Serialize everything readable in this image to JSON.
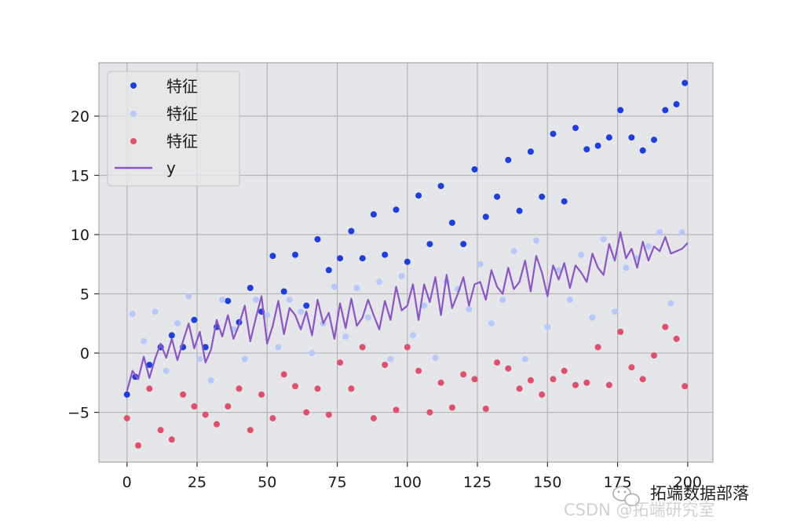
{
  "colors": {
    "feature_1": "#1f3ee0",
    "feature_2": "#b7c9fb",
    "feature_3": "#e0506a",
    "y_line": "#8a55c8",
    "plot_bg": "#e5e6e9",
    "grid": "#b5b5b8",
    "spine": "#a8a8a8"
  },
  "watermark": {
    "account": "拓端数据部落",
    "csdn": "CSDN @拓端研究室",
    "icon": "wechat-icon"
  },
  "chart_data": {
    "type": "scatter",
    "title": "",
    "xlabel": "",
    "ylabel": "",
    "xlim": [
      -10,
      209
    ],
    "ylim": [
      -9.2,
      24.5
    ],
    "xticks": [
      0,
      25,
      50,
      75,
      100,
      125,
      150,
      175,
      200
    ],
    "yticks": [
      -5,
      0,
      5,
      10,
      15,
      20
    ],
    "ytick_labels": [
      "−5",
      "0",
      "5",
      "10",
      "15",
      "20"
    ],
    "grid": true,
    "legend_position": "top-left",
    "series": [
      {
        "name": "特征",
        "kind": "scatter",
        "color_key": "feature_1",
        "x": [
          0,
          3,
          8,
          12,
          16,
          20,
          24,
          28,
          32,
          36,
          40,
          44,
          48,
          52,
          56,
          60,
          64,
          68,
          72,
          76,
          80,
          84,
          88,
          92,
          96,
          100,
          104,
          108,
          112,
          116,
          120,
          124,
          128,
          132,
          136,
          140,
          144,
          148,
          152,
          156,
          160,
          164,
          168,
          172,
          176,
          180,
          184,
          188,
          192,
          196,
          199
        ],
        "y": [
          -3.5,
          -2,
          -1,
          0.5,
          1.5,
          0.5,
          2.8,
          0.5,
          2.2,
          4.4,
          2.6,
          5.5,
          3.5,
          8.2,
          5.2,
          8.3,
          4,
          9.6,
          7,
          8,
          10.3,
          8,
          11.7,
          8.3,
          12.1,
          7.7,
          13.3,
          9.2,
          14.1,
          11,
          9.2,
          15.5,
          11.5,
          13.2,
          16.3,
          12,
          17,
          13.2,
          18.5,
          12.8,
          19,
          17.2,
          17.5,
          18.2,
          20.5,
          18.2,
          17.1,
          18,
          20.5,
          21,
          22.8
        ]
      },
      {
        "name": "特征",
        "kind": "scatter",
        "color_key": "feature_2",
        "x": [
          2,
          6,
          10,
          14,
          18,
          22,
          26,
          30,
          34,
          38,
          42,
          46,
          50,
          54,
          58,
          62,
          66,
          70,
          74,
          78,
          82,
          86,
          90,
          94,
          98,
          102,
          106,
          110,
          114,
          118,
          122,
          126,
          130,
          134,
          138,
          142,
          146,
          150,
          154,
          158,
          162,
          166,
          170,
          174,
          178,
          182,
          186,
          190,
          194,
          198
        ],
        "y": [
          3.3,
          1,
          3.5,
          -1.5,
          2.5,
          4.8,
          -0.5,
          -2.3,
          4.5,
          2,
          -0.5,
          4.5,
          3.2,
          0.5,
          4.5,
          3.5,
          0,
          2.5,
          5.6,
          1.4,
          5.5,
          3,
          6,
          -0.5,
          6.5,
          1.5,
          4,
          -0.4,
          6,
          5.4,
          3.7,
          7.5,
          2.5,
          4.5,
          8.6,
          -0.5,
          9.5,
          2.2,
          7,
          4.5,
          8.3,
          3,
          9.6,
          3.5,
          7.2,
          8,
          9,
          10.2,
          4.2,
          10.2
        ]
      },
      {
        "name": "特征",
        "kind": "scatter",
        "color_key": "feature_3",
        "x": [
          0,
          4,
          8,
          12,
          16,
          20,
          24,
          28,
          32,
          36,
          40,
          44,
          48,
          52,
          56,
          60,
          64,
          68,
          72,
          76,
          80,
          84,
          88,
          92,
          96,
          100,
          104,
          108,
          112,
          116,
          120,
          124,
          128,
          132,
          136,
          140,
          144,
          148,
          152,
          156,
          160,
          164,
          168,
          172,
          176,
          180,
          184,
          188,
          192,
          196,
          199
        ],
        "y": [
          -5.5,
          -7.8,
          -3,
          -6.5,
          -7.3,
          -3.5,
          -4.5,
          -5.2,
          -6,
          -4.5,
          -3,
          -6.5,
          -3.5,
          -5.5,
          -1.8,
          -2.8,
          -5,
          -3,
          -5.2,
          -0.8,
          -3,
          0.5,
          -5.5,
          -1,
          -4.8,
          0.5,
          -1.5,
          -5,
          -2.5,
          -4.6,
          -1.8,
          -2.2,
          -4.7,
          -0.8,
          -1.3,
          -3,
          -2.3,
          -3.5,
          -2.2,
          -1.5,
          -2.7,
          -2.5,
          0.5,
          -2.7,
          1.8,
          -1.2,
          -2.2,
          -0.2,
          2.2,
          1.2,
          -2.8
        ]
      },
      {
        "name": "y",
        "kind": "line",
        "color_key": "y_line",
        "x": [
          0,
          2,
          4,
          6,
          8,
          10,
          12,
          14,
          16,
          18,
          20,
          22,
          24,
          26,
          28,
          30,
          32,
          34,
          36,
          38,
          40,
          42,
          44,
          46,
          48,
          50,
          52,
          54,
          56,
          58,
          60,
          62,
          64,
          66,
          68,
          70,
          72,
          74,
          76,
          78,
          80,
          82,
          84,
          86,
          88,
          90,
          92,
          94,
          96,
          98,
          100,
          102,
          104,
          106,
          108,
          110,
          112,
          114,
          116,
          118,
          120,
          122,
          124,
          126,
          128,
          130,
          132,
          134,
          136,
          138,
          140,
          142,
          144,
          146,
          148,
          150,
          152,
          154,
          156,
          158,
          160,
          162,
          164,
          166,
          168,
          170,
          172,
          174,
          176,
          178,
          180,
          182,
          184,
          186,
          188,
          190,
          192,
          194,
          196,
          198,
          200
        ],
        "y": [
          -3.2,
          -1.5,
          -2.2,
          -0.3,
          -2.1,
          -0.5,
          0.8,
          -0.4,
          1.2,
          -0.6,
          1.0,
          2.5,
          0.4,
          1.8,
          -0.8,
          0.3,
          2.8,
          1.4,
          3.2,
          1.2,
          2.4,
          4.0,
          1.0,
          3.0,
          4.8,
          0.8,
          2.3,
          4.4,
          1.6,
          3.8,
          3.2,
          2.0,
          3.5,
          1.5,
          4.5,
          2.5,
          3.4,
          1.2,
          4.2,
          2.1,
          4.6,
          2.3,
          3.0,
          4.5,
          3.2,
          2.0,
          4.4,
          2.8,
          5.6,
          3.6,
          4.0,
          5.8,
          2.8,
          5.8,
          4.3,
          6.4,
          3.2,
          6.6,
          3.8,
          5.0,
          6.4,
          4.0,
          5.8,
          6.0,
          4.5,
          7.0,
          5.6,
          5.0,
          7.2,
          5.4,
          6.0,
          7.8,
          5.2,
          8.2,
          6.8,
          4.8,
          7.4,
          6.2,
          7.6,
          5.5,
          7.4,
          6.8,
          6.0,
          8.4,
          7.2,
          6.6,
          9.2,
          7.8,
          10.2,
          8.0,
          8.8,
          7.2,
          9.4,
          7.8,
          9.0,
          8.6,
          9.8,
          8.4,
          8.6,
          8.8,
          9.3
        ]
      }
    ]
  }
}
